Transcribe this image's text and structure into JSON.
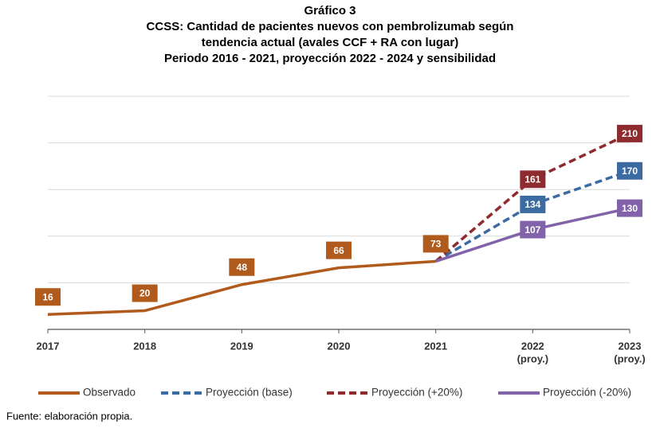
{
  "chart_data": {
    "type": "line",
    "title": [
      "Gráfico 3",
      "CCSS: Cantidad de pacientes nuevos con pembrolizumab según",
      "tendencia actual (avales CCF + RA con lugar)",
      "Periodo 2016 - 2021, proyección 2022 - 2024 y sensibilidad"
    ],
    "categories": [
      [
        "2017"
      ],
      [
        "2018"
      ],
      [
        "2019"
      ],
      [
        "2020"
      ],
      [
        "2021"
      ],
      [
        "2022",
        "(proy.)"
      ],
      [
        "2023",
        "(proy.)"
      ]
    ],
    "series": [
      {
        "name": "Observado",
        "color": "#b05a1c",
        "dashed": false,
        "values": [
          16,
          20,
          48,
          66,
          73,
          null,
          null
        ]
      },
      {
        "name": "Proyección (base)",
        "color": "#3b6ba1",
        "dashed": true,
        "values": [
          null,
          null,
          null,
          null,
          73,
          134,
          170
        ]
      },
      {
        "name": "Proyección (+20%)",
        "color": "#8e2b2e",
        "dashed": true,
        "values": [
          null,
          null,
          null,
          null,
          73,
          161,
          210
        ]
      },
      {
        "name": "Proyección (-20%)",
        "color": "#8263aa",
        "dashed": false,
        "values": [
          null,
          null,
          null,
          null,
          73,
          107,
          130
        ]
      }
    ],
    "ylim": [
      0,
      250
    ],
    "yticks": [
      0,
      50,
      100,
      150,
      200,
      250
    ],
    "grid": true,
    "source": "Fuente: elaboración propia."
  }
}
